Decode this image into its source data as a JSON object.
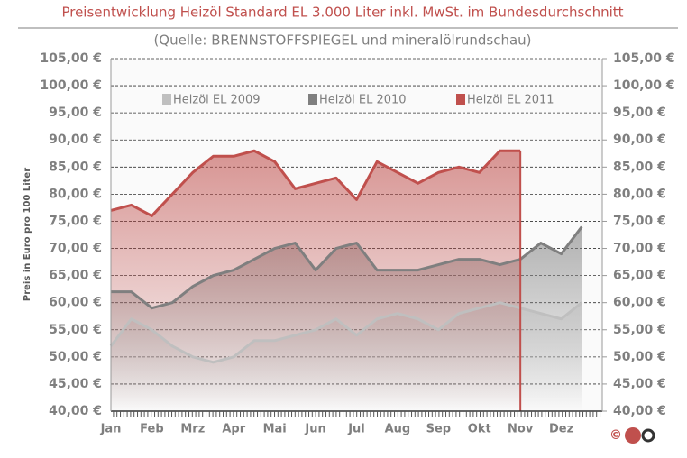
{
  "chart_data": {
    "type": "line",
    "title": "Preisentwicklung Heizöl Standard EL 3.000 Liter inkl. MwSt. im Bundesdurchschnitt",
    "subtitle": "(Quelle: BRENNSTOFFSPIEGEL  und mineralölrundschau)",
    "y_label": "Preis in Euro pro 100 Liter",
    "copyright": "©",
    "categories": [
      "Jan",
      null,
      "Feb",
      null,
      "Mrz",
      null,
      "Apr",
      null,
      "Mai",
      null,
      "Jun",
      null,
      "Jul",
      null,
      "Aug",
      null,
      "Sep",
      null,
      "Okt",
      null,
      "Nov",
      null,
      "Dez",
      null
    ],
    "series": [
      {
        "name": "Heizöl EL 2009",
        "color": "#bfbfbf",
        "values": [
          52,
          57,
          55,
          52,
          50,
          49,
          50,
          53,
          53,
          54,
          55,
          57,
          54,
          57,
          58,
          57,
          55,
          58,
          59,
          60,
          59,
          58,
          57,
          60
        ]
      },
      {
        "name": "Heizöl EL 2010",
        "color": "#7f7f7f",
        "values": [
          62,
          62,
          59,
          60,
          63,
          65,
          66,
          68,
          70,
          71,
          66,
          70,
          71,
          66,
          66,
          66,
          67,
          68,
          68,
          67,
          68,
          71,
          69,
          74
        ]
      },
      {
        "name": "Heizöl EL 2011",
        "color": "#c0504d",
        "values": [
          77,
          78,
          76,
          80,
          84,
          87,
          87,
          88,
          86,
          81,
          82,
          83,
          79,
          86,
          84,
          82,
          84,
          85,
          84,
          88,
          88,
          null,
          null,
          null
        ]
      }
    ],
    "ylim": [
      40,
      105
    ],
    "yticks": [
      {
        "value": 40,
        "label": "40,00 €"
      },
      {
        "value": 45,
        "label": "45,00 €"
      },
      {
        "value": 50,
        "label": "50,00 €"
      },
      {
        "value": 55,
        "label": "55,00 €"
      },
      {
        "value": 60,
        "label": "60,00 €"
      },
      {
        "value": 65,
        "label": "65,00 €"
      },
      {
        "value": 70,
        "label": "70,00 €"
      },
      {
        "value": 75,
        "label": "75,00 €"
      },
      {
        "value": 80,
        "label": "80,00 €"
      },
      {
        "value": 85,
        "label": "85,00 €"
      },
      {
        "value": 90,
        "label": "90,00 €"
      },
      {
        "value": 95,
        "label": "95,00 €"
      },
      {
        "value": 100,
        "label": "100,00 €"
      },
      {
        "value": 105,
        "label": "105,00 €"
      }
    ],
    "y2lim": [
      40,
      105
    ],
    "y2ticks": [
      {
        "value": 40,
        "label": "40,00 €"
      },
      {
        "value": 45,
        "label": "45,00 €"
      },
      {
        "value": 50,
        "label": "50,00 €"
      },
      {
        "value": 55,
        "label": "55,00 €"
      },
      {
        "value": 60,
        "label": "60,00 €"
      },
      {
        "value": 65,
        "label": "65,00 €"
      },
      {
        "value": 70,
        "label": "70,00 €"
      },
      {
        "value": 75,
        "label": "75,00 €"
      },
      {
        "value": 80,
        "label": "80,00 €"
      },
      {
        "value": 85,
        "label": "85,00 €"
      },
      {
        "value": 90,
        "label": "90,00 €"
      },
      {
        "value": 95,
        "label": "95,00 €"
      },
      {
        "value": 100,
        "label": "100,00 €"
      },
      {
        "value": 105,
        "label": "105,00 €"
      }
    ],
    "grid": true,
    "legend": "top"
  }
}
